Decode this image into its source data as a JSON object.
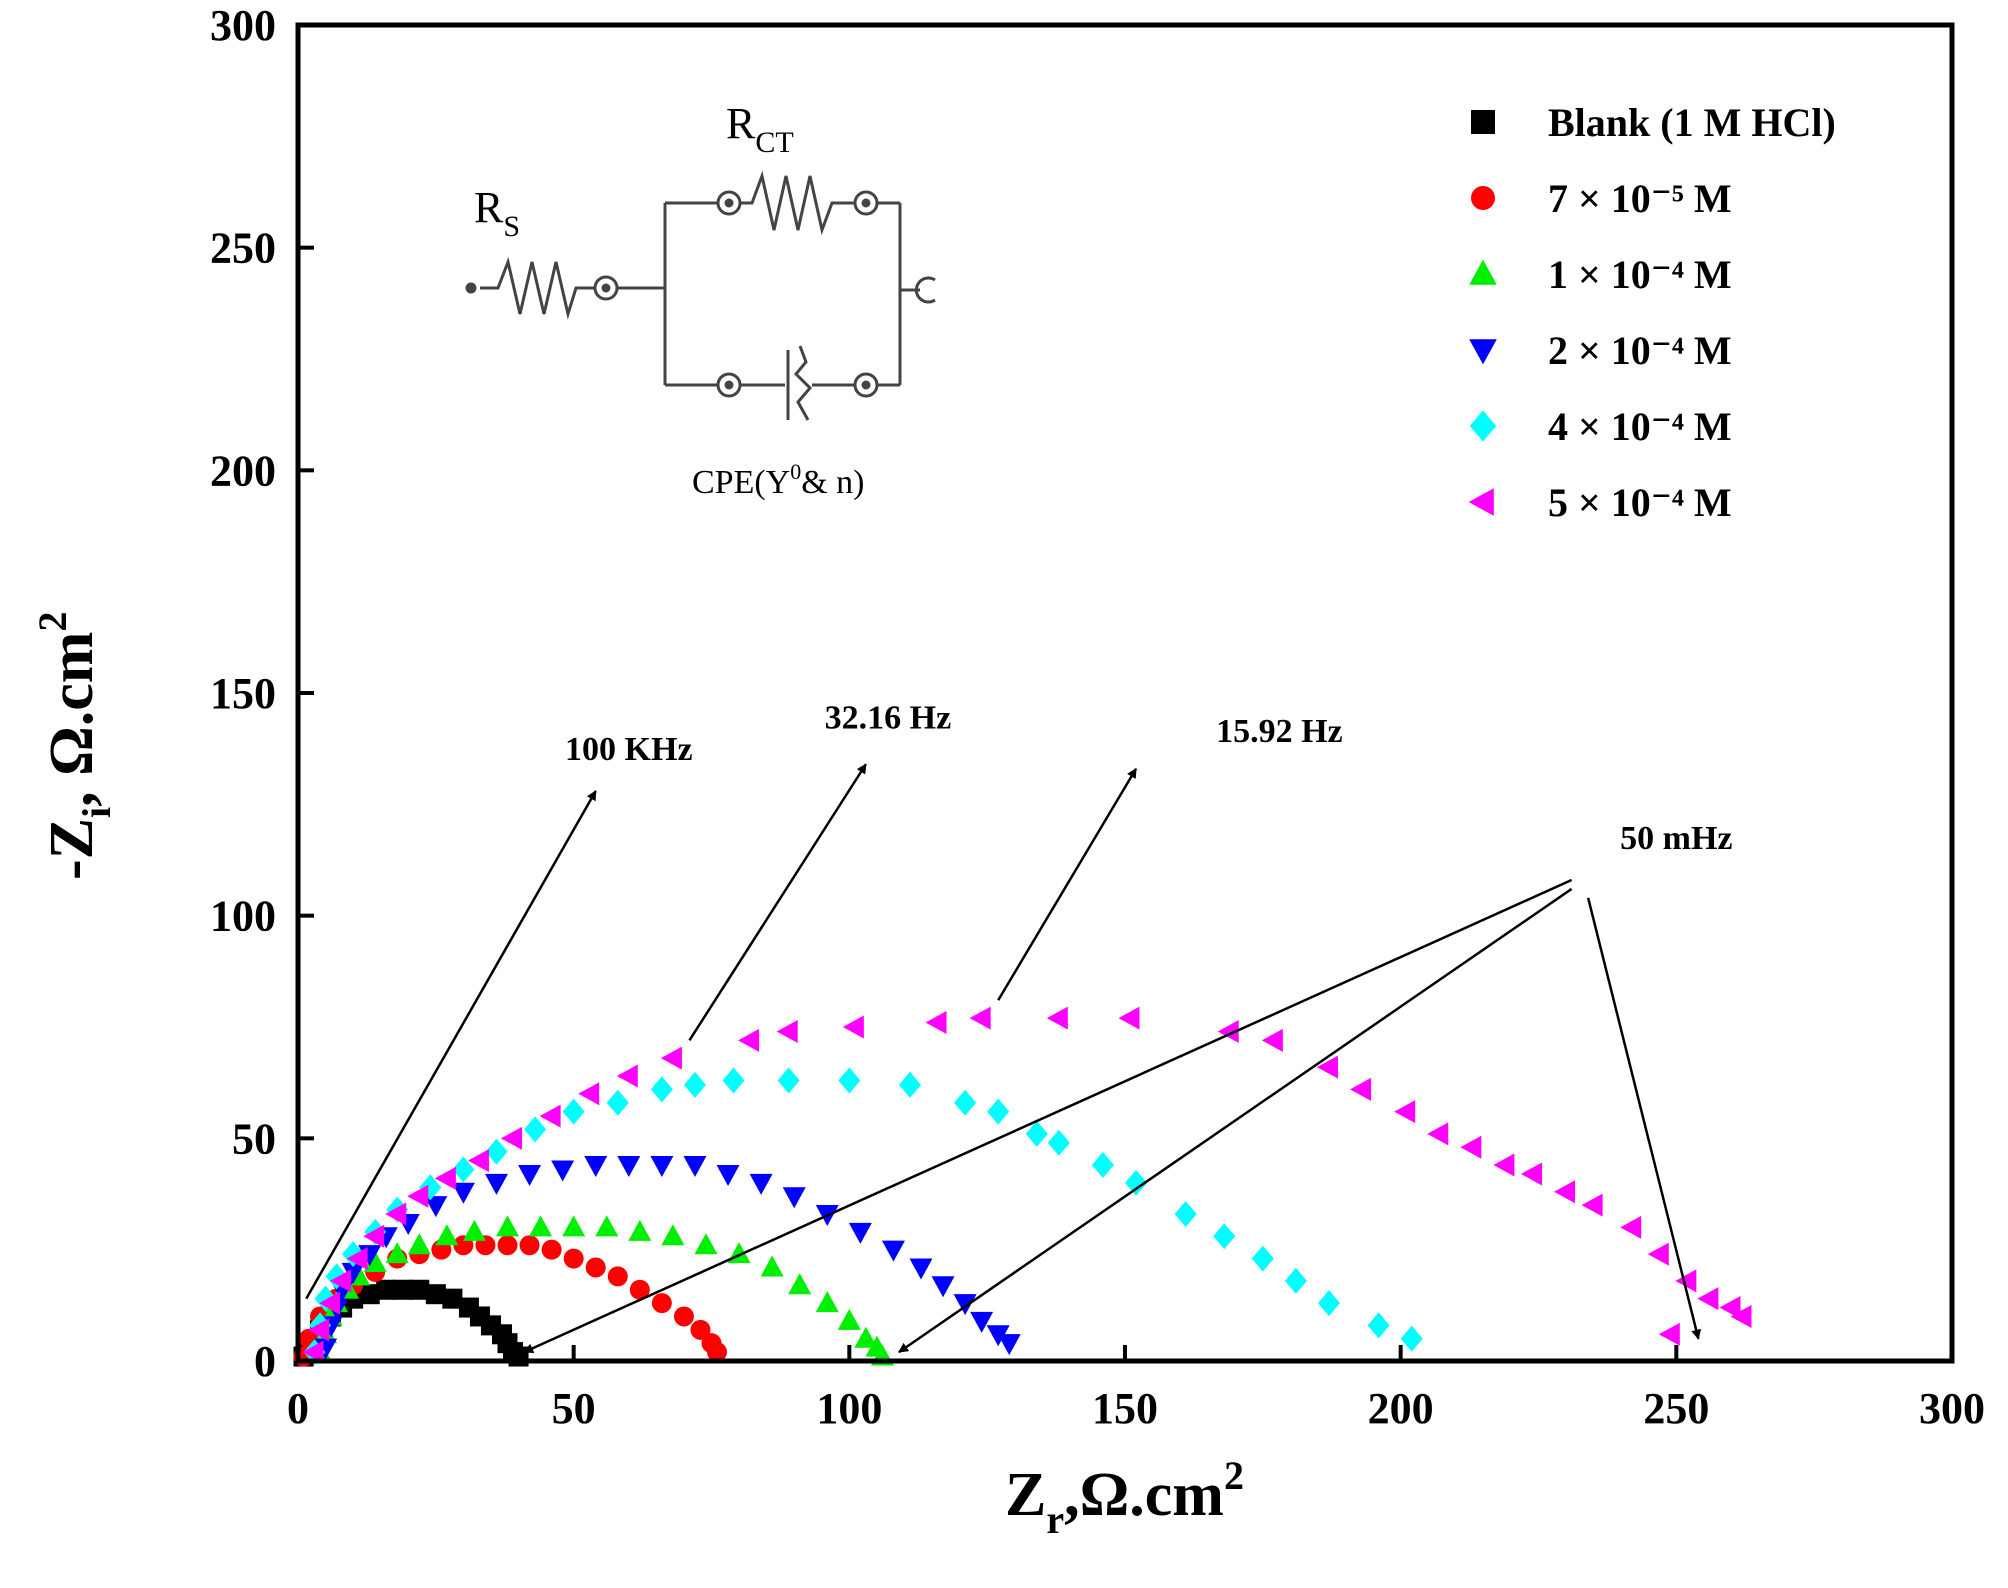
{
  "chart_data": {
    "type": "scatter",
    "title": "",
    "xlabel": {
      "main": "Z",
      "sub": "r",
      "rest": ",Ω.cm",
      "sup": "2"
    },
    "ylabel": {
      "main": "-Z",
      "sub": "i",
      "rest": ", Ω.cm",
      "sup": "2"
    },
    "xlim": [
      0,
      300
    ],
    "ylim": [
      0,
      300
    ],
    "xticks": [
      "0",
      "50",
      "100",
      "150",
      "200",
      "250",
      "300"
    ],
    "yticks": [
      "0",
      "50",
      "100",
      "150",
      "200",
      "250",
      "300"
    ],
    "grid": false,
    "legend_position": "top-right",
    "series": [
      {
        "name": "Blank (1 M HCl)",
        "marker": "square",
        "color": "#000000",
        "x": [
          1,
          2,
          4,
          6,
          8,
          10,
          13,
          16,
          19,
          22,
          25,
          28,
          31,
          33,
          35,
          37,
          38,
          39,
          40
        ],
        "y": [
          1,
          4,
          7,
          10,
          12,
          14,
          15,
          16,
          16,
          16,
          15,
          14,
          12,
          10,
          8,
          6,
          4,
          2,
          1
        ]
      },
      {
        "name": "7 × 10⁻⁵ M",
        "marker": "circle",
        "color": "#ff0000",
        "x": [
          1,
          2,
          4,
          7,
          10,
          14,
          18,
          22,
          26,
          30,
          34,
          38,
          42,
          46,
          50,
          54,
          58,
          62,
          66,
          70,
          73,
          75,
          76
        ],
        "y": [
          1,
          5,
          10,
          14,
          17,
          20,
          23,
          24,
          25,
          26,
          26,
          26,
          26,
          25,
          23,
          21,
          19,
          16,
          13,
          10,
          7,
          4,
          2
        ]
      },
      {
        "name": "1 × 10⁻⁴ M",
        "marker": "triangle-up",
        "color": "#00ee00",
        "x": [
          4,
          5,
          6,
          7,
          9,
          11,
          14,
          18,
          22,
          27,
          32,
          38,
          44,
          50,
          56,
          62,
          68,
          74,
          80,
          86,
          91,
          96,
          100,
          103,
          105,
          106
        ],
        "y": [
          2,
          6,
          10,
          13,
          16,
          19,
          22,
          24,
          26,
          28,
          29,
          30,
          30,
          30,
          30,
          29,
          28,
          26,
          24,
          21,
          17,
          13,
          9,
          5,
          3,
          1
        ]
      },
      {
        "name": "2 × 10⁻⁴ M",
        "marker": "triangle-down",
        "color": "#0000ff",
        "x": [
          5,
          6,
          7,
          8,
          10,
          13,
          16,
          20,
          25,
          30,
          36,
          42,
          48,
          54,
          60,
          66,
          72,
          78,
          84,
          90,
          96,
          102,
          108,
          113,
          117,
          121,
          124,
          127,
          129
        ],
        "y": [
          3,
          8,
          12,
          16,
          20,
          24,
          28,
          31,
          35,
          38,
          40,
          42,
          43,
          44,
          44,
          44,
          44,
          42,
          40,
          37,
          33,
          29,
          25,
          21,
          17,
          13,
          9,
          6,
          4
        ]
      },
      {
        "name": "4 × 10⁻⁴ M",
        "marker": "diamond",
        "color": "#00ffff",
        "x": [
          3,
          4,
          5,
          7,
          10,
          14,
          18,
          24,
          30,
          36,
          43,
          50,
          58,
          66,
          72,
          79,
          89,
          100,
          111,
          121,
          127,
          134,
          138,
          146,
          152,
          161,
          168,
          175,
          181,
          187,
          196,
          202
        ],
        "y": [
          2,
          8,
          14,
          19,
          24,
          29,
          34,
          39,
          43,
          47,
          52,
          56,
          58,
          61,
          62,
          63,
          63,
          63,
          62,
          58,
          56,
          51,
          49,
          44,
          40,
          33,
          28,
          23,
          18,
          13,
          8,
          5
        ]
      },
      {
        "name": "5 × 10⁻⁴ M",
        "marker": "triangle-left",
        "color": "#ff00ff",
        "x": [
          3,
          4,
          6,
          8,
          11,
          14,
          18,
          22,
          27,
          33,
          39,
          46,
          53,
          60,
          68,
          82,
          89,
          101,
          116,
          124,
          138,
          151,
          169,
          177,
          187,
          193,
          201,
          207,
          213,
          219,
          224,
          230,
          235,
          242,
          247,
          252,
          256,
          260,
          262,
          249
        ],
        "y": [
          2,
          7,
          13,
          18,
          23,
          28,
          33,
          37,
          41,
          45,
          50,
          55,
          60,
          64,
          68,
          72,
          74,
          75,
          76,
          77,
          77,
          77,
          74,
          72,
          66,
          61,
          56,
          51,
          48,
          44,
          42,
          38,
          35,
          30,
          24,
          18,
          14,
          12,
          10,
          6
        ]
      }
    ],
    "annotations": [
      {
        "label": "100 KHz",
        "text_x": 60,
        "text_y": 135,
        "arrows": [
          {
            "from": [
              1.5,
              14
            ],
            "to": [
              54,
              128
            ]
          }
        ]
      },
      {
        "label": "32.16 Hz",
        "text_x": 107,
        "text_y": 142,
        "arrows": [
          {
            "from": [
              71,
              72
            ],
            "to": [
              103,
              134
            ]
          }
        ]
      },
      {
        "label": "15.92 Hz",
        "text_x": 178,
        "text_y": 139,
        "arrows": [
          {
            "from": [
              127,
              81
            ],
            "to": [
              152,
              133
            ]
          }
        ]
      },
      {
        "label": "50 mHz",
        "text_x": 250,
        "text_y": 115,
        "arrows": [
          {
            "from": [
              231,
              108
            ],
            "to": [
              41,
              2
            ]
          },
          {
            "from": [
              231,
              106
            ],
            "to": [
              109,
              2
            ]
          },
          {
            "from": [
              234,
              104
            ],
            "to": [
              254,
              5
            ]
          }
        ]
      }
    ]
  },
  "equivalent_circuit": {
    "rs_main": "R",
    "rs_sub": "S",
    "rct_main": "R",
    "rct_sub": "CT",
    "cpe_pre": "CPE(Y",
    "cpe_sup": "0",
    "cpe_post": "& n)"
  }
}
